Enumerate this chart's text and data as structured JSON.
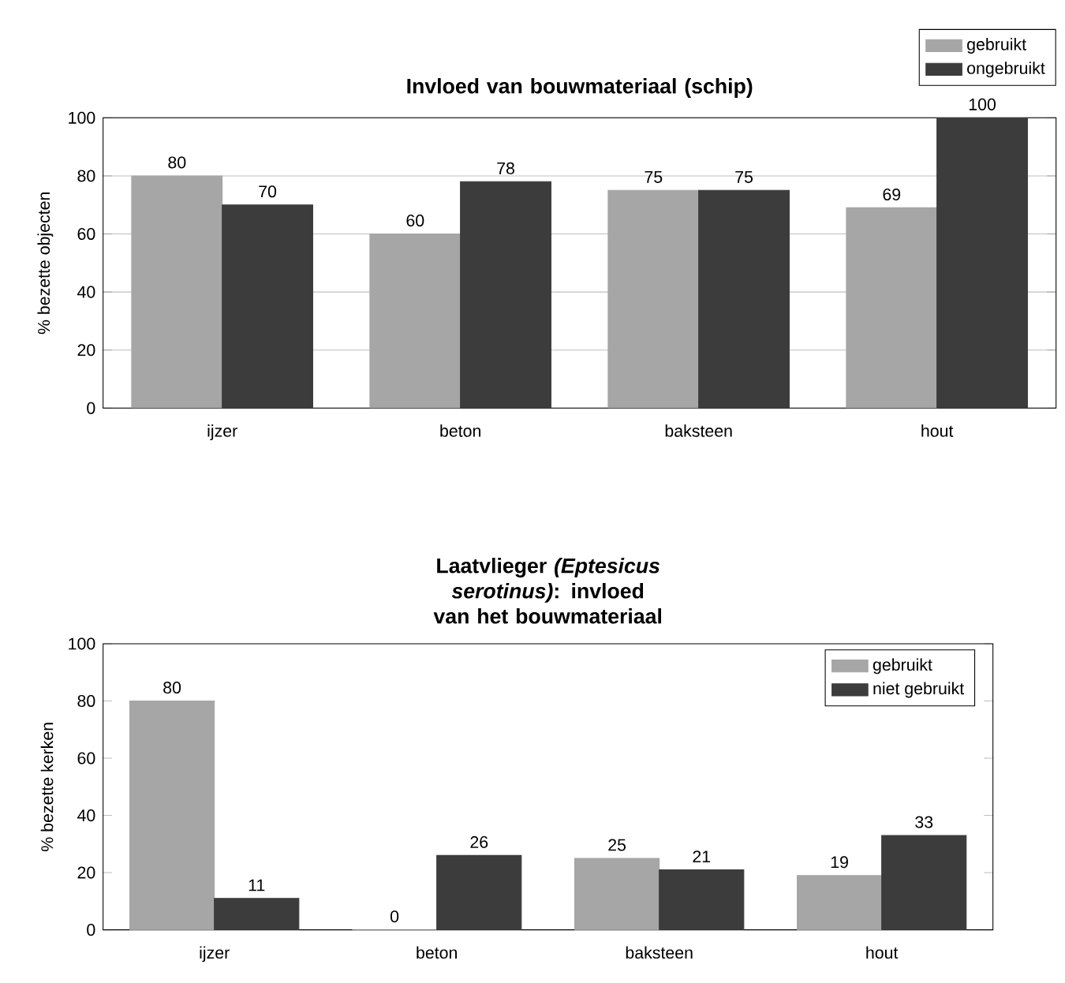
{
  "chart_data": [
    {
      "type": "bar",
      "title": "Invloed van bouwmateriaal (schip)",
      "ylabel": "% bezette objecten",
      "categories": [
        "ijzer",
        "beton",
        "baksteen",
        "hout"
      ],
      "series": [
        {
          "name": "gebruikt",
          "color": "#a6a6a6",
          "values": [
            80,
            60,
            75,
            69
          ]
        },
        {
          "name": "ongebruikt",
          "color": "#3c3c3c",
          "values": [
            70,
            78,
            75,
            100
          ]
        }
      ],
      "ylim": [
        0,
        100
      ],
      "yticks": [
        0,
        20,
        40,
        60,
        80,
        100
      ],
      "grid": "y",
      "legend": "top right",
      "data_labels": true
    },
    {
      "type": "bar",
      "title": "Laatvlieger *(Eptesicus serotinus)*: invloed van het bouwmateriaal",
      "ylabel": "% bezette kerken",
      "categories": [
        "ijzer",
        "beton",
        "baksteen",
        "hout"
      ],
      "series": [
        {
          "name": "gebruikt",
          "color": "#a6a6a6",
          "values": [
            80,
            0,
            25,
            19
          ]
        },
        {
          "name": "niet gebruikt",
          "color": "#3c3c3c",
          "values": [
            11,
            26,
            21,
            33
          ]
        }
      ],
      "ylim": [
        0,
        100
      ],
      "yticks": [
        0,
        20,
        40,
        60,
        80,
        100
      ],
      "legend": "top right",
      "data_labels": true
    }
  ]
}
